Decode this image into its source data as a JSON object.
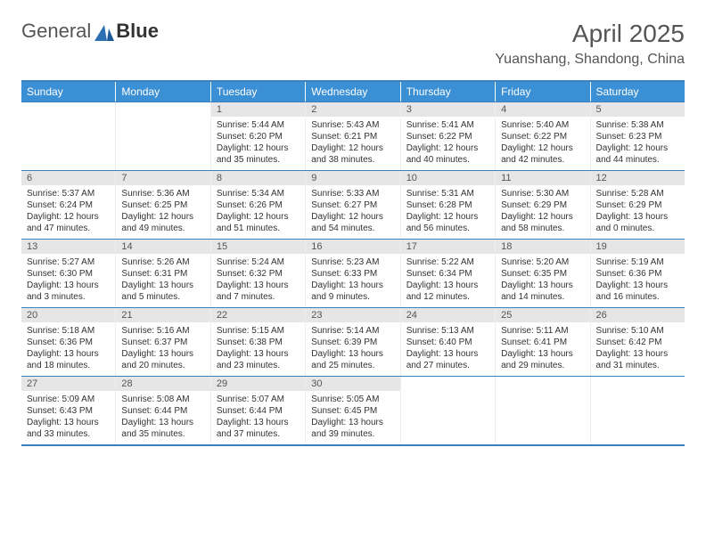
{
  "logo": {
    "part1": "General",
    "part2": "Blue"
  },
  "title": "April 2025",
  "location": "Yuanshang, Shandong, China",
  "colors": {
    "header_bg": "#3b8fd4",
    "border": "#3b7fbf",
    "daynum_bg": "#e6e6e6"
  },
  "dow": [
    "Sunday",
    "Monday",
    "Tuesday",
    "Wednesday",
    "Thursday",
    "Friday",
    "Saturday"
  ],
  "weeks": [
    [
      null,
      null,
      {
        "n": "1",
        "sr": "Sunrise: 5:44 AM",
        "ss": "Sunset: 6:20 PM",
        "dl": "Daylight: 12 hours and 35 minutes."
      },
      {
        "n": "2",
        "sr": "Sunrise: 5:43 AM",
        "ss": "Sunset: 6:21 PM",
        "dl": "Daylight: 12 hours and 38 minutes."
      },
      {
        "n": "3",
        "sr": "Sunrise: 5:41 AM",
        "ss": "Sunset: 6:22 PM",
        "dl": "Daylight: 12 hours and 40 minutes."
      },
      {
        "n": "4",
        "sr": "Sunrise: 5:40 AM",
        "ss": "Sunset: 6:22 PM",
        "dl": "Daylight: 12 hours and 42 minutes."
      },
      {
        "n": "5",
        "sr": "Sunrise: 5:38 AM",
        "ss": "Sunset: 6:23 PM",
        "dl": "Daylight: 12 hours and 44 minutes."
      }
    ],
    [
      {
        "n": "6",
        "sr": "Sunrise: 5:37 AM",
        "ss": "Sunset: 6:24 PM",
        "dl": "Daylight: 12 hours and 47 minutes."
      },
      {
        "n": "7",
        "sr": "Sunrise: 5:36 AM",
        "ss": "Sunset: 6:25 PM",
        "dl": "Daylight: 12 hours and 49 minutes."
      },
      {
        "n": "8",
        "sr": "Sunrise: 5:34 AM",
        "ss": "Sunset: 6:26 PM",
        "dl": "Daylight: 12 hours and 51 minutes."
      },
      {
        "n": "9",
        "sr": "Sunrise: 5:33 AM",
        "ss": "Sunset: 6:27 PM",
        "dl": "Daylight: 12 hours and 54 minutes."
      },
      {
        "n": "10",
        "sr": "Sunrise: 5:31 AM",
        "ss": "Sunset: 6:28 PM",
        "dl": "Daylight: 12 hours and 56 minutes."
      },
      {
        "n": "11",
        "sr": "Sunrise: 5:30 AM",
        "ss": "Sunset: 6:29 PM",
        "dl": "Daylight: 12 hours and 58 minutes."
      },
      {
        "n": "12",
        "sr": "Sunrise: 5:28 AM",
        "ss": "Sunset: 6:29 PM",
        "dl": "Daylight: 13 hours and 0 minutes."
      }
    ],
    [
      {
        "n": "13",
        "sr": "Sunrise: 5:27 AM",
        "ss": "Sunset: 6:30 PM",
        "dl": "Daylight: 13 hours and 3 minutes."
      },
      {
        "n": "14",
        "sr": "Sunrise: 5:26 AM",
        "ss": "Sunset: 6:31 PM",
        "dl": "Daylight: 13 hours and 5 minutes."
      },
      {
        "n": "15",
        "sr": "Sunrise: 5:24 AM",
        "ss": "Sunset: 6:32 PM",
        "dl": "Daylight: 13 hours and 7 minutes."
      },
      {
        "n": "16",
        "sr": "Sunrise: 5:23 AM",
        "ss": "Sunset: 6:33 PM",
        "dl": "Daylight: 13 hours and 9 minutes."
      },
      {
        "n": "17",
        "sr": "Sunrise: 5:22 AM",
        "ss": "Sunset: 6:34 PM",
        "dl": "Daylight: 13 hours and 12 minutes."
      },
      {
        "n": "18",
        "sr": "Sunrise: 5:20 AM",
        "ss": "Sunset: 6:35 PM",
        "dl": "Daylight: 13 hours and 14 minutes."
      },
      {
        "n": "19",
        "sr": "Sunrise: 5:19 AM",
        "ss": "Sunset: 6:36 PM",
        "dl": "Daylight: 13 hours and 16 minutes."
      }
    ],
    [
      {
        "n": "20",
        "sr": "Sunrise: 5:18 AM",
        "ss": "Sunset: 6:36 PM",
        "dl": "Daylight: 13 hours and 18 minutes."
      },
      {
        "n": "21",
        "sr": "Sunrise: 5:16 AM",
        "ss": "Sunset: 6:37 PM",
        "dl": "Daylight: 13 hours and 20 minutes."
      },
      {
        "n": "22",
        "sr": "Sunrise: 5:15 AM",
        "ss": "Sunset: 6:38 PM",
        "dl": "Daylight: 13 hours and 23 minutes."
      },
      {
        "n": "23",
        "sr": "Sunrise: 5:14 AM",
        "ss": "Sunset: 6:39 PM",
        "dl": "Daylight: 13 hours and 25 minutes."
      },
      {
        "n": "24",
        "sr": "Sunrise: 5:13 AM",
        "ss": "Sunset: 6:40 PM",
        "dl": "Daylight: 13 hours and 27 minutes."
      },
      {
        "n": "25",
        "sr": "Sunrise: 5:11 AM",
        "ss": "Sunset: 6:41 PM",
        "dl": "Daylight: 13 hours and 29 minutes."
      },
      {
        "n": "26",
        "sr": "Sunrise: 5:10 AM",
        "ss": "Sunset: 6:42 PM",
        "dl": "Daylight: 13 hours and 31 minutes."
      }
    ],
    [
      {
        "n": "27",
        "sr": "Sunrise: 5:09 AM",
        "ss": "Sunset: 6:43 PM",
        "dl": "Daylight: 13 hours and 33 minutes."
      },
      {
        "n": "28",
        "sr": "Sunrise: 5:08 AM",
        "ss": "Sunset: 6:44 PM",
        "dl": "Daylight: 13 hours and 35 minutes."
      },
      {
        "n": "29",
        "sr": "Sunrise: 5:07 AM",
        "ss": "Sunset: 6:44 PM",
        "dl": "Daylight: 13 hours and 37 minutes."
      },
      {
        "n": "30",
        "sr": "Sunrise: 5:05 AM",
        "ss": "Sunset: 6:45 PM",
        "dl": "Daylight: 13 hours and 39 minutes."
      },
      null,
      null,
      null
    ]
  ]
}
